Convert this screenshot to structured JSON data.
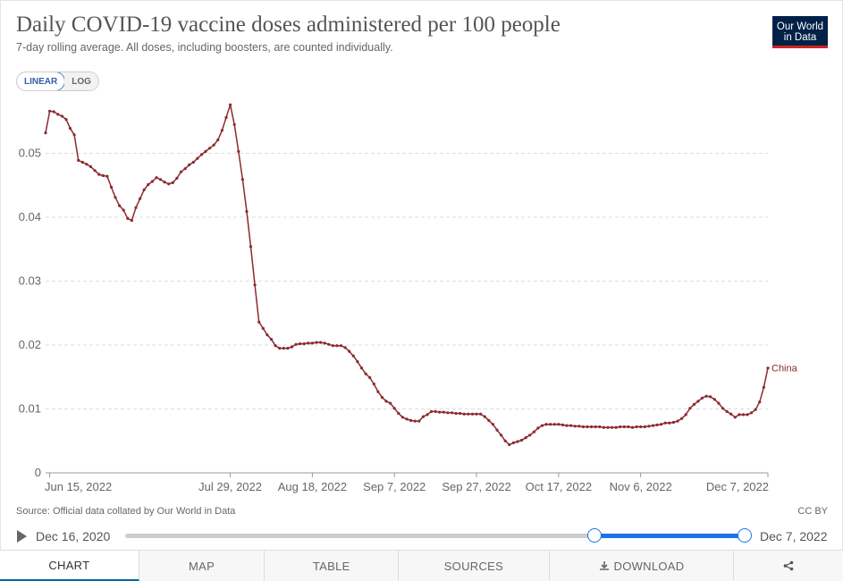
{
  "header": {
    "title": "Daily COVID-19 vaccine doses administered per 100 people",
    "subtitle": "7-day rolling average. All doses, including boosters, are counted individually.",
    "logo_line1": "Our World",
    "logo_line2": "in Data"
  },
  "scale_toggle": {
    "linear": "LINEAR",
    "log": "LOG",
    "active": "linear"
  },
  "chart_data": {
    "type": "line",
    "xlabel": "",
    "ylabel": "",
    "ylim": [
      0,
      0.06
    ],
    "y_ticks": [
      "0",
      "0.01",
      "0.02",
      "0.03",
      "0.04",
      "0.05"
    ],
    "x_ticks": [
      "Jun 15, 2022",
      "Jul 29, 2022",
      "Aug 18, 2022",
      "Sep 7, 2022",
      "Sep 27, 2022",
      "Oct 17, 2022",
      "Nov 6, 2022",
      "Dec 7, 2022"
    ],
    "x_tick_dates": [
      "2022-06-15",
      "2022-07-29",
      "2022-08-18",
      "2022-09-07",
      "2022-09-27",
      "2022-10-17",
      "2022-11-06",
      "2022-12-07"
    ],
    "x_range": [
      "2022-06-14",
      "2022-12-07"
    ],
    "grid": "horizontal dashed",
    "series": [
      {
        "name": "China",
        "color": "#8b2a2f",
        "points": [
          [
            "2022-06-14",
            0.0532
          ],
          [
            "2022-06-15",
            0.0566
          ],
          [
            "2022-06-16",
            0.0565
          ],
          [
            "2022-06-17",
            0.0561
          ],
          [
            "2022-06-18",
            0.0558
          ],
          [
            "2022-06-19",
            0.0553
          ],
          [
            "2022-06-20",
            0.0539
          ],
          [
            "2022-06-21",
            0.0529
          ],
          [
            "2022-06-22",
            0.0489
          ],
          [
            "2022-06-23",
            0.0486
          ],
          [
            "2022-06-24",
            0.0483
          ],
          [
            "2022-06-25",
            0.0479
          ],
          [
            "2022-06-26",
            0.0473
          ],
          [
            "2022-06-27",
            0.0467
          ],
          [
            "2022-06-28",
            0.0465
          ],
          [
            "2022-06-29",
            0.0464
          ],
          [
            "2022-06-30",
            0.0447
          ],
          [
            "2022-07-01",
            0.0431
          ],
          [
            "2022-07-02",
            0.0418
          ],
          [
            "2022-07-03",
            0.0411
          ],
          [
            "2022-07-04",
            0.0398
          ],
          [
            "2022-07-05",
            0.0395
          ],
          [
            "2022-07-06",
            0.0415
          ],
          [
            "2022-07-07",
            0.0429
          ],
          [
            "2022-07-08",
            0.0443
          ],
          [
            "2022-07-09",
            0.0451
          ],
          [
            "2022-07-10",
            0.0456
          ],
          [
            "2022-07-11",
            0.0462
          ],
          [
            "2022-07-12",
            0.0459
          ],
          [
            "2022-07-13",
            0.0455
          ],
          [
            "2022-07-14",
            0.0452
          ],
          [
            "2022-07-15",
            0.0454
          ],
          [
            "2022-07-16",
            0.0461
          ],
          [
            "2022-07-17",
            0.0471
          ],
          [
            "2022-07-18",
            0.0476
          ],
          [
            "2022-07-19",
            0.0482
          ],
          [
            "2022-07-20",
            0.0486
          ],
          [
            "2022-07-21",
            0.0492
          ],
          [
            "2022-07-22",
            0.0498
          ],
          [
            "2022-07-23",
            0.0503
          ],
          [
            "2022-07-24",
            0.0508
          ],
          [
            "2022-07-25",
            0.0513
          ],
          [
            "2022-07-26",
            0.0521
          ],
          [
            "2022-07-27",
            0.0536
          ],
          [
            "2022-07-28",
            0.0556
          ],
          [
            "2022-07-29",
            0.0576
          ],
          [
            "2022-07-30",
            0.0545
          ],
          [
            "2022-07-31",
            0.0503
          ],
          [
            "2022-08-01",
            0.0459
          ],
          [
            "2022-08-02",
            0.0409
          ],
          [
            "2022-08-03",
            0.0354
          ],
          [
            "2022-08-04",
            0.0294
          ],
          [
            "2022-08-05",
            0.0236
          ],
          [
            "2022-08-06",
            0.0226
          ],
          [
            "2022-08-07",
            0.0216
          ],
          [
            "2022-08-08",
            0.0209
          ],
          [
            "2022-08-09",
            0.0199
          ],
          [
            "2022-08-10",
            0.0195
          ],
          [
            "2022-08-11",
            0.0195
          ],
          [
            "2022-08-12",
            0.0195
          ],
          [
            "2022-08-13",
            0.0197
          ],
          [
            "2022-08-14",
            0.0201
          ],
          [
            "2022-08-15",
            0.0202
          ],
          [
            "2022-08-16",
            0.0202
          ],
          [
            "2022-08-17",
            0.0203
          ],
          [
            "2022-08-18",
            0.0203
          ],
          [
            "2022-08-19",
            0.0204
          ],
          [
            "2022-08-20",
            0.0204
          ],
          [
            "2022-08-21",
            0.0203
          ],
          [
            "2022-08-22",
            0.0201
          ],
          [
            "2022-08-23",
            0.0199
          ],
          [
            "2022-08-24",
            0.0199
          ],
          [
            "2022-08-25",
            0.0199
          ],
          [
            "2022-08-26",
            0.0196
          ],
          [
            "2022-08-27",
            0.019
          ],
          [
            "2022-08-28",
            0.0183
          ],
          [
            "2022-08-29",
            0.0174
          ],
          [
            "2022-08-30",
            0.0164
          ],
          [
            "2022-08-31",
            0.0155
          ],
          [
            "2022-09-01",
            0.0149
          ],
          [
            "2022-09-02",
            0.0139
          ],
          [
            "2022-09-03",
            0.0127
          ],
          [
            "2022-09-04",
            0.0118
          ],
          [
            "2022-09-05",
            0.0112
          ],
          [
            "2022-09-06",
            0.0109
          ],
          [
            "2022-09-07",
            0.0101
          ],
          [
            "2022-09-08",
            0.0093
          ],
          [
            "2022-09-09",
            0.0087
          ],
          [
            "2022-09-10",
            0.0084
          ],
          [
            "2022-09-11",
            0.0082
          ],
          [
            "2022-09-12",
            0.0081
          ],
          [
            "2022-09-13",
            0.0081
          ],
          [
            "2022-09-14",
            0.0088
          ],
          [
            "2022-09-15",
            0.0091
          ],
          [
            "2022-09-16",
            0.0096
          ],
          [
            "2022-09-17",
            0.0096
          ],
          [
            "2022-09-18",
            0.0095
          ],
          [
            "2022-09-19",
            0.0095
          ],
          [
            "2022-09-20",
            0.0094
          ],
          [
            "2022-09-21",
            0.0094
          ],
          [
            "2022-09-22",
            0.0093
          ],
          [
            "2022-09-23",
            0.0093
          ],
          [
            "2022-09-24",
            0.0092
          ],
          [
            "2022-09-25",
            0.0092
          ],
          [
            "2022-09-26",
            0.0092
          ],
          [
            "2022-09-27",
            0.0092
          ],
          [
            "2022-09-28",
            0.0092
          ],
          [
            "2022-09-29",
            0.0088
          ],
          [
            "2022-09-30",
            0.0082
          ],
          [
            "2022-10-01",
            0.0076
          ],
          [
            "2022-10-02",
            0.0067
          ],
          [
            "2022-10-03",
            0.0059
          ],
          [
            "2022-10-04",
            0.005
          ],
          [
            "2022-10-05",
            0.0044
          ],
          [
            "2022-10-06",
            0.0047
          ],
          [
            "2022-10-07",
            0.0049
          ],
          [
            "2022-10-08",
            0.0051
          ],
          [
            "2022-10-09",
            0.0055
          ],
          [
            "2022-10-10",
            0.0059
          ],
          [
            "2022-10-11",
            0.0064
          ],
          [
            "2022-10-12",
            0.007
          ],
          [
            "2022-10-13",
            0.0074
          ],
          [
            "2022-10-14",
            0.0076
          ],
          [
            "2022-10-15",
            0.0076
          ],
          [
            "2022-10-16",
            0.0076
          ],
          [
            "2022-10-17",
            0.0076
          ],
          [
            "2022-10-18",
            0.0075
          ],
          [
            "2022-10-19",
            0.0074
          ],
          [
            "2022-10-20",
            0.0074
          ],
          [
            "2022-10-21",
            0.0073
          ],
          [
            "2022-10-22",
            0.0073
          ],
          [
            "2022-10-23",
            0.0072
          ],
          [
            "2022-10-24",
            0.0072
          ],
          [
            "2022-10-25",
            0.0072
          ],
          [
            "2022-10-26",
            0.0072
          ],
          [
            "2022-10-27",
            0.0072
          ],
          [
            "2022-10-28",
            0.0071
          ],
          [
            "2022-10-29",
            0.0071
          ],
          [
            "2022-10-30",
            0.0071
          ],
          [
            "2022-10-31",
            0.0071
          ],
          [
            "2022-11-01",
            0.0072
          ],
          [
            "2022-11-02",
            0.0072
          ],
          [
            "2022-11-03",
            0.0072
          ],
          [
            "2022-11-04",
            0.0071
          ],
          [
            "2022-11-05",
            0.0072
          ],
          [
            "2022-11-06",
            0.0072
          ],
          [
            "2022-11-07",
            0.0072
          ],
          [
            "2022-11-08",
            0.0073
          ],
          [
            "2022-11-09",
            0.0074
          ],
          [
            "2022-11-10",
            0.0075
          ],
          [
            "2022-11-11",
            0.0076
          ],
          [
            "2022-11-12",
            0.0078
          ],
          [
            "2022-11-13",
            0.0078
          ],
          [
            "2022-11-14",
            0.0079
          ],
          [
            "2022-11-15",
            0.0081
          ],
          [
            "2022-11-16",
            0.0085
          ],
          [
            "2022-11-17",
            0.0091
          ],
          [
            "2022-11-18",
            0.0101
          ],
          [
            "2022-11-19",
            0.0107
          ],
          [
            "2022-11-20",
            0.0112
          ],
          [
            "2022-11-21",
            0.0117
          ],
          [
            "2022-11-22",
            0.012
          ],
          [
            "2022-11-23",
            0.0119
          ],
          [
            "2022-11-24",
            0.0115
          ],
          [
            "2022-11-25",
            0.0109
          ],
          [
            "2022-11-26",
            0.0101
          ],
          [
            "2022-11-27",
            0.0096
          ],
          [
            "2022-11-28",
            0.0092
          ],
          [
            "2022-11-29",
            0.0087
          ],
          [
            "2022-11-30",
            0.0091
          ],
          [
            "2022-12-01",
            0.0091
          ],
          [
            "2022-12-02",
            0.0091
          ],
          [
            "2022-12-03",
            0.0094
          ],
          [
            "2022-12-04",
            0.0099
          ],
          [
            "2022-12-05",
            0.0111
          ],
          [
            "2022-12-06",
            0.0134
          ],
          [
            "2022-12-07",
            0.0164
          ]
        ]
      }
    ]
  },
  "footer": {
    "source": "Source: Official data collated by Our World in Data",
    "license": "CC BY"
  },
  "timeline": {
    "start_label": "Dec 16, 2020",
    "end_label": "Dec 7, 2022",
    "selection_start": 0.758,
    "selection_end": 1.0
  },
  "tabs": {
    "chart": "CHART",
    "map": "MAP",
    "table": "TABLE",
    "sources": "SOURCES",
    "download": "DOWNLOAD",
    "active": "chart"
  },
  "icons": {
    "share": "share-icon",
    "download": "download-icon",
    "play": "play-icon"
  }
}
